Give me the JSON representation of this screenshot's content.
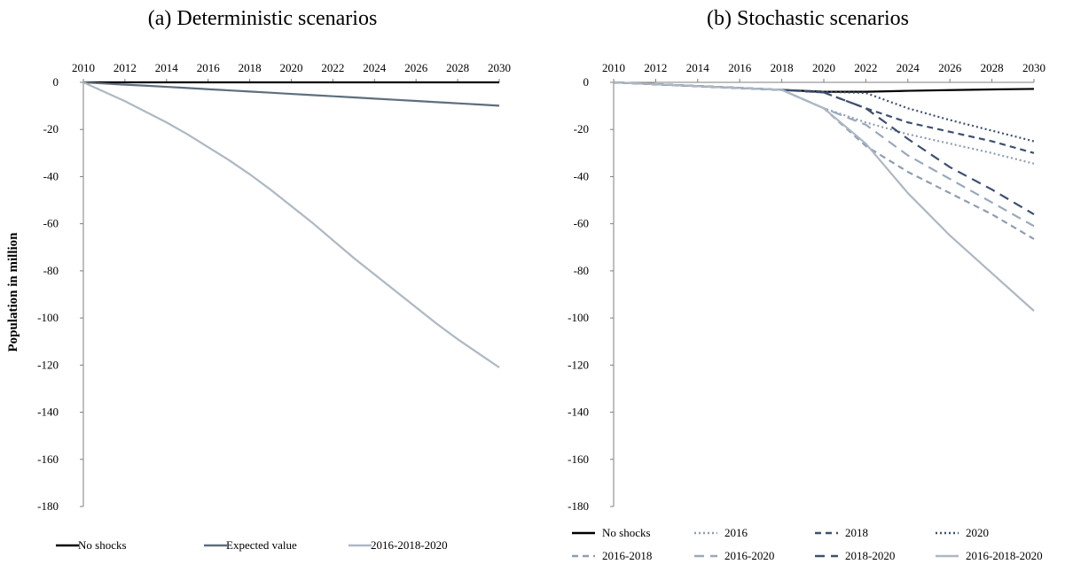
{
  "chart_data": [
    {
      "type": "line",
      "title": "(a) Deterministic scenarios",
      "ylabel": "Population in million",
      "x": [
        2010,
        2011,
        2012,
        2013,
        2014,
        2015,
        2016,
        2017,
        2018,
        2019,
        2020,
        2021,
        2022,
        2023,
        2024,
        2025,
        2026,
        2027,
        2028,
        2029,
        2030
      ],
      "x_tick_labels": [
        "2010",
        "2012",
        "2014",
        "2016",
        "2018",
        "2020",
        "2022",
        "2024",
        "2026",
        "2028",
        "2030"
      ],
      "y_tick_labels": [
        "0",
        "-20",
        "-40",
        "-60",
        "-80",
        "-100",
        "-120",
        "-140",
        "-160",
        "-180"
      ],
      "xlim": [
        2010,
        2030
      ],
      "ylim": [
        -180,
        0
      ],
      "x_axis_position": "top",
      "legend_position": "bottom",
      "series": [
        {
          "name": "No shocks",
          "color": "#000000",
          "dash": "solid",
          "values": [
            0,
            0,
            0,
            0,
            0,
            0,
            0,
            0,
            0,
            0,
            0,
            0,
            0,
            0,
            0,
            0,
            0,
            0,
            0,
            0,
            0
          ]
        },
        {
          "name": "Expected value",
          "color": "#5f6e7d",
          "dash": "solid",
          "values": [
            0,
            -0.5,
            -1.0,
            -1.4,
            -1.9,
            -2.4,
            -2.9,
            -3.4,
            -3.9,
            -4.4,
            -4.9,
            -5.4,
            -5.9,
            -6.4,
            -6.9,
            -7.4,
            -7.9,
            -8.4,
            -8.9,
            -9.4,
            -9.9
          ]
        },
        {
          "name": "2016-2018-2020",
          "color": "#adb8c3",
          "dash": "solid",
          "values": [
            0,
            -4,
            -8,
            -12.5,
            -17,
            -22,
            -27.5,
            -33,
            -39,
            -45.5,
            -52.5,
            -59.5,
            -67,
            -74.5,
            -81.5,
            -88.5,
            -95.5,
            -102.5,
            -109,
            -115,
            -121
          ]
        }
      ]
    },
    {
      "type": "line",
      "title": "(b) Stochastic scenarios",
      "ylabel": "",
      "x": [
        2010,
        2012,
        2014,
        2016,
        2018,
        2020,
        2022,
        2024,
        2026,
        2028,
        2030
      ],
      "x_tick_labels": [
        "2010",
        "2012",
        "2014",
        "2016",
        "2018",
        "2020",
        "2022",
        "2024",
        "2026",
        "2028",
        "2030"
      ],
      "y_tick_labels": [
        "0",
        "-20",
        "-40",
        "-60",
        "-80",
        "-100",
        "-120",
        "-140",
        "-160",
        "-180"
      ],
      "xlim": [
        2010,
        2030
      ],
      "ylim": [
        -180,
        0
      ],
      "x_axis_position": "top",
      "legend_position": "bottom",
      "series": [
        {
          "name": "No shocks",
          "color": "#000000",
          "dash": "solid",
          "values": [
            0,
            -0.8,
            -1.6,
            -2.4,
            -3.2,
            -4.0,
            -4.0,
            -3.6,
            -3.3,
            -3.0,
            -2.8
          ]
        },
        {
          "name": "2016",
          "color": "#8f9db0",
          "dash": "dot",
          "values": [
            0,
            -0.8,
            -1.6,
            -2.4,
            -3.2,
            -11.0,
            -17.0,
            -22.0,
            -26.0,
            -30.0,
            -34.5
          ]
        },
        {
          "name": "2018",
          "color": "#3e5070",
          "dash": "dash",
          "values": [
            0,
            -0.8,
            -1.6,
            -2.4,
            -3.2,
            -4.3,
            -11.0,
            -17.0,
            -21.0,
            -25.0,
            -30.0
          ]
        },
        {
          "name": "2020",
          "color": "#3e5070",
          "dash": "dot",
          "values": [
            0,
            -0.8,
            -1.6,
            -2.4,
            -3.2,
            -4.0,
            -4.5,
            -11.0,
            -16.0,
            -20.5,
            -25.0
          ]
        },
        {
          "name": "2016-2018",
          "color": "#8f9db0",
          "dash": "dash",
          "values": [
            0,
            -0.8,
            -1.6,
            -2.4,
            -3.2,
            -11.0,
            -27.0,
            -38.0,
            -47.0,
            -56.0,
            -66.5
          ]
        },
        {
          "name": "2016-2020",
          "color": "#9aa8bc",
          "dash": "longdash",
          "values": [
            0,
            -0.8,
            -1.6,
            -2.4,
            -3.2,
            -11.0,
            -18.0,
            -31.0,
            -41.0,
            -51.0,
            -61.0
          ]
        },
        {
          "name": "2018-2020",
          "color": "#3e5070",
          "dash": "longdash",
          "values": [
            0,
            -0.8,
            -1.6,
            -2.4,
            -3.2,
            -4.3,
            -11.0,
            -24.0,
            -36.0,
            -45.5,
            -56.0
          ]
        },
        {
          "name": "2016-2018-2020",
          "color": "#adb8c3",
          "dash": "solid",
          "values": [
            0,
            -0.8,
            -1.6,
            -2.4,
            -3.2,
            -11.0,
            -26.0,
            -47.0,
            -65.0,
            -81.0,
            -97.0
          ]
        }
      ]
    }
  ]
}
